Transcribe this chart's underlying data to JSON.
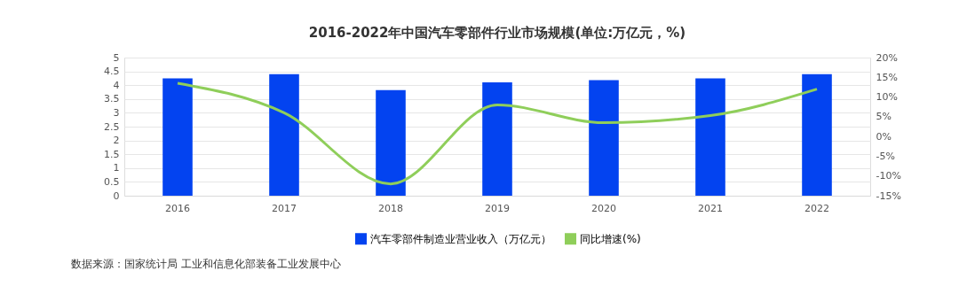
{
  "chart_data": {
    "type": "bar",
    "title": "2016-2022年中国汽车零部件行业市场规模(单位:万亿元，%)",
    "categories": [
      "2016",
      "2017",
      "2018",
      "2019",
      "2020",
      "2021",
      "2022"
    ],
    "series": [
      {
        "name": "汽车零部件制造业营业收入（万亿元）",
        "color": "#0343f0",
        "values": [
          4.25,
          4.4,
          3.82,
          4.1,
          4.18,
          4.25,
          4.4
        ]
      },
      {
        "name": "同比增速(%)",
        "type": "line",
        "axis": "y2",
        "color": "#8fce5a",
        "values": [
          13.5,
          6,
          -12,
          8,
          3.5,
          5.3,
          12
        ]
      }
    ],
    "ylim": [
      0,
      5
    ],
    "yticks": [
      0,
      0.5,
      1,
      1.5,
      2,
      2.5,
      3,
      3.5,
      4,
      4.5,
      5
    ],
    "y2lim": [
      -15,
      20
    ],
    "y2ticks": [
      {
        "value": -15,
        "label": "-15%"
      },
      {
        "value": -10,
        "label": "-10%"
      },
      {
        "value": -5,
        "label": "-5%"
      },
      {
        "value": 0,
        "label": "0%"
      },
      {
        "value": 5,
        "label": "5%"
      },
      {
        "value": 10,
        "label": "10%"
      },
      {
        "value": 15,
        "label": "15%"
      },
      {
        "value": 20,
        "label": "20%"
      }
    ],
    "grid": "y",
    "legend": "bottom",
    "marker": "none",
    "line_style": "solid",
    "annotations": [
      "数据来源：国家统计局 工业和信息化部装备工业发展中心"
    ]
  }
}
